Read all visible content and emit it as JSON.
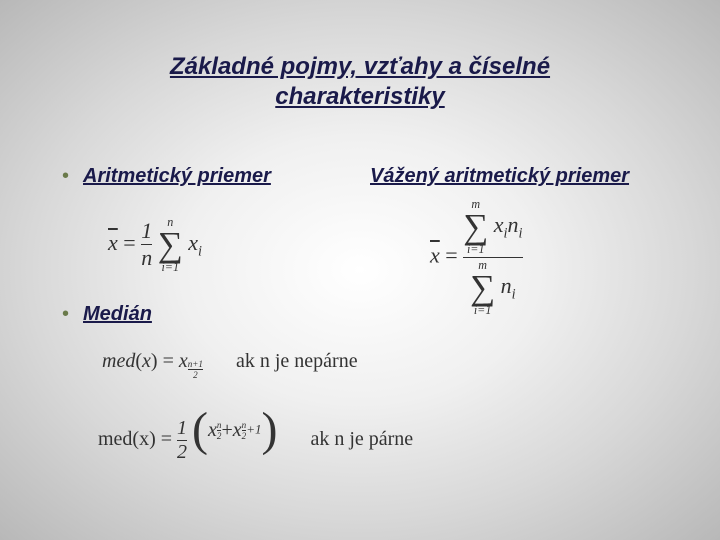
{
  "title_line1": "Základné pojmy, vzťahy a číselné",
  "title_line2": "charakteristiky",
  "sections": {
    "arithmetic_mean": "Aritmetický priemer",
    "weighted_mean": "Vážený aritmetický priemer",
    "median": "Medián"
  },
  "formulas": {
    "am": {
      "lhs_var": "x",
      "frac_num": "1",
      "frac_den": "n",
      "sum_top": "n",
      "sum_bot": "i=1",
      "term": "x",
      "term_sub": "i"
    },
    "wam": {
      "lhs_var": "x",
      "num_sum_top": "m",
      "num_sum_bot": "i=1",
      "num_term1": "x",
      "num_sub1": "i",
      "num_term2": "n",
      "num_sub2": "i",
      "den_sum_top": "m",
      "den_sum_bot": "i=1",
      "den_term": "n",
      "den_sub": "i"
    },
    "med1": {
      "lhs": "med",
      "arg": "x",
      "rhs_var": "x",
      "sub_num": "n+1",
      "sub_den": "2",
      "cond": "ak n je nepárne"
    },
    "med2": {
      "lhs": "med(x)",
      "coef_num": "1",
      "coef_den": "2",
      "t1_var": "x",
      "t1_sub_num": "n",
      "t1_sub_den": "2",
      "t2_var": "x",
      "t2_sub_num": "n",
      "t2_sub_den": "2",
      "t2_sub_plus": "+1",
      "cond": "ak n je párne"
    }
  },
  "style": {
    "title_color": "#1a1a4a",
    "bullet_color": "#6a7a4a",
    "text_color": "#333333",
    "bg_gradient": [
      "#ffffff",
      "#f0f0f0",
      "#d8d8d8",
      "#b8b8b8"
    ],
    "title_fontsize": 24,
    "label_fontsize": 20,
    "formula_fontsize": 22
  }
}
